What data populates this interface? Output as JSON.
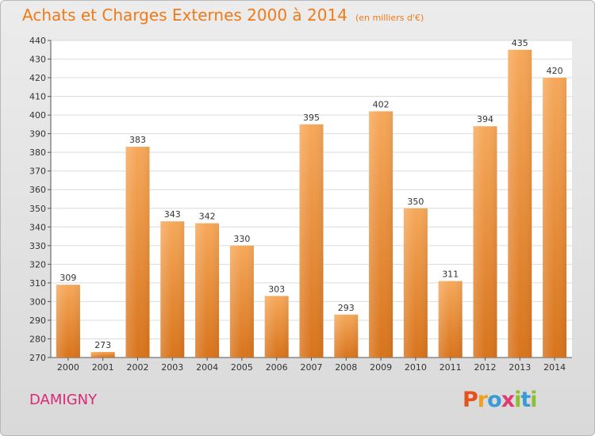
{
  "header": {
    "title": "Achats et Charges Externes 2000 à 2014",
    "unit": "(en milliers d'€)"
  },
  "footer": {
    "town": "DAMIGNY",
    "logo_letters": [
      "P",
      "r",
      "o",
      "x",
      "i",
      "t",
      "i"
    ]
  },
  "colors": {
    "title": "#f07a18",
    "town": "#dc2878",
    "bar_top": "#f6a85a",
    "bar_bottom": "#d8741c",
    "logo": [
      "#e8501a",
      "#f0a020",
      "#3a9ad8",
      "#e03a70",
      "#8cc030",
      "#3a9ad8",
      "#8cc030"
    ]
  },
  "chart_data": {
    "type": "bar",
    "categories": [
      "2000",
      "2001",
      "2002",
      "2003",
      "2004",
      "2005",
      "2006",
      "2007",
      "2008",
      "2009",
      "2010",
      "2011",
      "2012",
      "2013",
      "2014"
    ],
    "values": [
      309,
      273,
      383,
      343,
      342,
      330,
      303,
      395,
      293,
      402,
      350,
      311,
      394,
      435,
      420
    ],
    "ylim": [
      270,
      440
    ],
    "yticks": [
      270,
      280,
      290,
      300,
      310,
      320,
      330,
      340,
      350,
      360,
      370,
      380,
      390,
      400,
      410,
      420,
      430,
      440
    ],
    "grid": true,
    "data_labels": true
  }
}
